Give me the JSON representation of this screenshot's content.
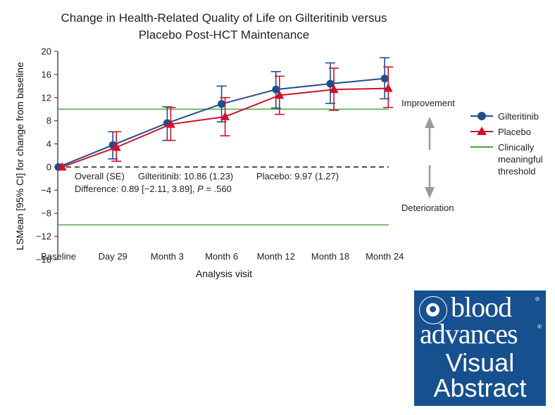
{
  "chart_data": {
    "type": "line",
    "title_lines": [
      "Change in Health-Related Quality of Life on Gilteritinib versus",
      "Placebo Post-HCT Maintenance"
    ],
    "xlabel": "Analysis visit",
    "ylabel": "LSMean [95% CI] for change from baseline",
    "categories": [
      "Baseline",
      "Day 29",
      "Month 3",
      "Month 6",
      "Month 12",
      "Month 18",
      "Month 24"
    ],
    "ylim": [
      -16,
      20
    ],
    "yticks": [
      "20",
      "16",
      "12",
      "8",
      "4",
      "0",
      "−4",
      "−8",
      "−12",
      "−16"
    ],
    "ytick_values": [
      20,
      16,
      12,
      8,
      4,
      0,
      -4,
      -8,
      -12,
      -16
    ],
    "series": [
      {
        "name": "Gilteritinib",
        "color": "#1f4e8c",
        "marker": "circle",
        "values": [
          0,
          3.8,
          7.6,
          10.9,
          13.4,
          14.4,
          15.3
        ],
        "ci_low": [
          0,
          1.4,
          4.6,
          7.8,
          10.2,
          11.0,
          11.8
        ],
        "ci_high": [
          0,
          6.1,
          10.4,
          14.0,
          16.5,
          18.0,
          18.9
        ]
      },
      {
        "name": "Placebo",
        "color": "#d0102b",
        "marker": "triangle",
        "values": [
          0,
          3.4,
          7.4,
          8.7,
          12.4,
          13.4,
          13.6
        ],
        "ci_low": [
          0,
          1.0,
          4.6,
          5.4,
          9.1,
          9.8,
          10.3
        ],
        "ci_high": [
          0,
          6.1,
          10.3,
          12.0,
          15.7,
          17.1,
          17.3
        ]
      }
    ],
    "threshold": {
      "name": "Clinically meaningful threshold",
      "legend_lines": [
        "Clinically",
        "meaningful",
        "threshold"
      ],
      "values": [
        10,
        -10
      ],
      "color": "#3aaa35"
    },
    "zero_line": 0,
    "improvement_label": "Improvement",
    "deterioration_label": "Deterioration",
    "annotation_line1_a": "Overall (SE)",
    "annotation_line1_b": "Gilteritinib: 10.86 (1.23)",
    "annotation_line1_c": "Placebo: 9.97 (1.27)",
    "annotation_line2_a": "Difference: 0.89 [−2.11, 3.89], ",
    "annotation_line2_p": "P",
    "annotation_line2_b": " = .560"
  },
  "logo": {
    "brand_line1": "blood",
    "brand_line2": "advances",
    "registered_mark": "®",
    "visual": "Visual",
    "abstract": "Abstract"
  }
}
